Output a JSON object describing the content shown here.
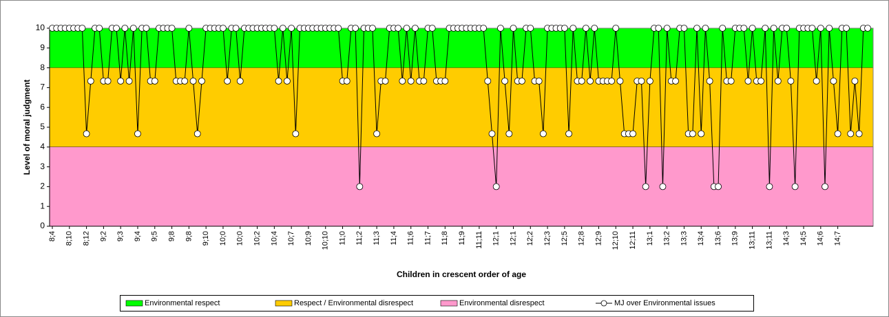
{
  "chart_data": {
    "type": "line",
    "x_label": "Children in crescent order of age",
    "y_label": "Level of moral judgment",
    "ylim": [
      0,
      10
    ],
    "yticks": [
      0,
      1,
      2,
      3,
      4,
      5,
      6,
      7,
      8,
      9,
      10
    ],
    "bands": [
      {
        "name": "Environmental respect",
        "from": 8,
        "to": 10,
        "color": "#00ff00"
      },
      {
        "name": "Respect / Environmental disrespect",
        "from": 4,
        "to": 8,
        "color": "#ffcc00"
      },
      {
        "name": "Environmental disrespect",
        "from": 0,
        "to": 4,
        "color": "#ff99cc"
      }
    ],
    "categories": [
      "8;4",
      null,
      null,
      null,
      "8;10",
      null,
      null,
      null,
      "8;12",
      null,
      null,
      null,
      "9;2",
      null,
      null,
      null,
      "9;3",
      null,
      null,
      null,
      "9;4",
      null,
      null,
      null,
      "9;5",
      null,
      null,
      null,
      "9;8",
      null,
      null,
      null,
      "9;8",
      null,
      null,
      null,
      "9;10",
      null,
      null,
      null,
      "10;0",
      null,
      null,
      null,
      "10;0",
      null,
      null,
      null,
      "10;2",
      null,
      null,
      null,
      "10;4",
      null,
      null,
      null,
      "10;7",
      null,
      null,
      null,
      "10;9",
      null,
      null,
      null,
      "10;10",
      null,
      null,
      null,
      "11;0",
      null,
      null,
      null,
      "11;2",
      null,
      null,
      null,
      "11;3",
      null,
      null,
      null,
      "11;4",
      null,
      null,
      null,
      "11;6",
      null,
      null,
      null,
      "11;7",
      null,
      null,
      null,
      "11;8",
      null,
      null,
      null,
      "11;9",
      null,
      null,
      null,
      "11;11",
      null,
      null,
      null,
      "12;1",
      null,
      null,
      null,
      "12;1",
      null,
      null,
      null,
      "12;2",
      null,
      null,
      null,
      "12;3",
      null,
      null,
      null,
      "12;5",
      null,
      null,
      null,
      "12;8",
      null,
      null,
      null,
      "12;9",
      null,
      null,
      null,
      "12;10",
      null,
      null,
      null,
      "12;11",
      null,
      null,
      null,
      "13;1",
      null,
      null,
      null,
      "13;2",
      null,
      null,
      null,
      "13;3",
      null,
      null,
      null,
      "13;4",
      null,
      null,
      null,
      "13;6",
      null,
      null,
      null,
      "13;9",
      null,
      null,
      null,
      "13;11",
      null,
      null,
      null,
      "13;11",
      null,
      null,
      null,
      "14;3",
      null,
      null,
      null,
      "14;5",
      null,
      null,
      null,
      "14;6",
      null,
      null,
      null,
      "14;7",
      null,
      null,
      null,
      null,
      null,
      null,
      null
    ],
    "series": [
      {
        "name": "MJ over Environmental issues",
        "color": "#000000",
        "values": [
          10,
          10,
          10,
          10,
          10,
          10,
          10,
          10,
          4.67,
          7.33,
          10,
          10,
          7.33,
          7.33,
          10,
          10,
          7.33,
          10,
          7.33,
          10,
          4.67,
          10,
          10,
          7.33,
          7.33,
          10,
          10,
          10,
          10,
          7.33,
          7.33,
          7.33,
          10,
          7.33,
          4.67,
          7.33,
          10,
          10,
          10,
          10,
          10,
          7.33,
          10,
          10,
          7.33,
          10,
          10,
          10,
          10,
          10,
          10,
          10,
          10,
          7.33,
          10,
          7.33,
          10,
          4.67,
          10,
          10,
          10,
          10,
          10,
          10,
          10,
          10,
          10,
          10,
          7.33,
          7.33,
          10,
          10,
          2,
          10,
          10,
          10,
          4.67,
          7.33,
          7.33,
          10,
          10,
          10,
          7.33,
          10,
          7.33,
          10,
          7.33,
          7.33,
          10,
          10,
          7.33,
          7.33,
          7.33,
          10,
          10,
          10,
          10,
          10,
          10,
          10,
          10,
          10,
          7.33,
          4.67,
          2,
          10,
          7.33,
          4.67,
          10,
          7.33,
          7.33,
          10,
          10,
          7.33,
          7.33,
          4.67,
          10,
          10,
          10,
          10,
          10,
          4.67,
          10,
          7.33,
          7.33,
          10,
          7.33,
          10,
          7.33,
          7.33,
          7.33,
          7.33,
          10,
          7.33,
          4.67,
          4.67,
          4.67,
          7.33,
          7.33,
          2,
          7.33,
          10,
          10,
          2,
          10,
          7.33,
          7.33,
          10,
          10,
          4.67,
          4.67,
          10,
          4.67,
          10,
          7.33,
          2,
          2,
          10,
          7.33,
          7.33,
          10,
          10,
          10,
          7.33,
          10,
          7.33,
          7.33,
          10,
          2,
          10,
          7.33,
          10,
          10,
          7.33,
          2,
          10,
          10,
          10,
          10,
          7.33,
          10,
          2,
          10,
          7.33,
          4.67,
          10,
          10,
          4.67,
          7.33,
          4.67,
          10,
          10
        ]
      }
    ]
  }
}
